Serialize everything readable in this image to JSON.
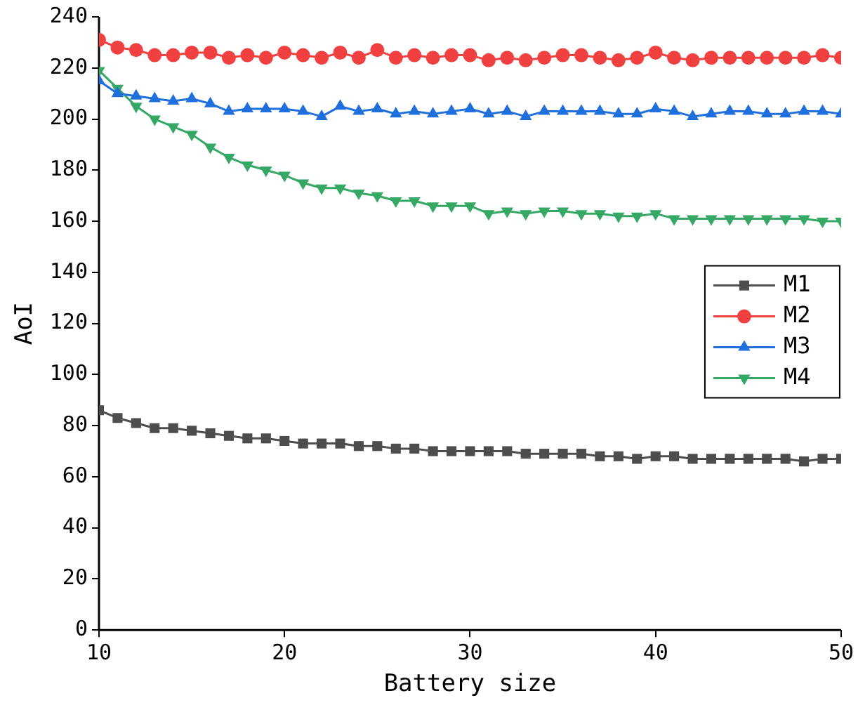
{
  "chart_data": {
    "type": "line",
    "xlabel": "Battery size",
    "ylabel": "AoI",
    "x": [
      10,
      11,
      12,
      13,
      14,
      15,
      16,
      17,
      18,
      19,
      20,
      21,
      22,
      23,
      24,
      25,
      26,
      27,
      28,
      29,
      30,
      31,
      32,
      33,
      34,
      35,
      36,
      37,
      38,
      39,
      40,
      41,
      42,
      43,
      44,
      45,
      46,
      47,
      48,
      49,
      50
    ],
    "series": [
      {
        "name": "M1",
        "color": "#4d4d4d",
        "marker": "square",
        "values": [
          86,
          83,
          81,
          79,
          79,
          78,
          77,
          76,
          75,
          75,
          74,
          73,
          73,
          73,
          72,
          72,
          71,
          71,
          70,
          70,
          70,
          70,
          70,
          69,
          69,
          69,
          69,
          68,
          68,
          67,
          68,
          68,
          67,
          67,
          67,
          67,
          67,
          67,
          66,
          67,
          67
        ]
      },
      {
        "name": "M2",
        "color": "#f04040",
        "marker": "circle",
        "values": [
          231,
          228,
          227,
          225,
          225,
          226,
          226,
          224,
          225,
          224,
          226,
          225,
          224,
          226,
          224,
          227,
          224,
          225,
          224,
          225,
          225,
          223,
          224,
          223,
          224,
          225,
          225,
          224,
          223,
          224,
          226,
          224,
          223,
          224,
          224,
          224,
          224,
          224,
          224,
          225,
          224
        ]
      },
      {
        "name": "M3",
        "color": "#1f6fdc",
        "marker": "triangle",
        "values": [
          215,
          210,
          209,
          208,
          207,
          208,
          206,
          203,
          204,
          204,
          204,
          203,
          201,
          205,
          203,
          204,
          202,
          203,
          202,
          203,
          204,
          202,
          203,
          201,
          203,
          203,
          203,
          203,
          202,
          202,
          204,
          203,
          201,
          202,
          203,
          203,
          202,
          202,
          203,
          203,
          202
        ]
      },
      {
        "name": "M4",
        "color": "#35a865",
        "marker": "triangle-down",
        "values": [
          219,
          212,
          205,
          200,
          197,
          194,
          189,
          185,
          182,
          180,
          178,
          175,
          173,
          173,
          171,
          170,
          168,
          168,
          166,
          166,
          166,
          163,
          164,
          163,
          164,
          164,
          163,
          163,
          162,
          162,
          163,
          161,
          161,
          161,
          161,
          161,
          161,
          161,
          161,
          160,
          160
        ]
      }
    ],
    "xlim": [
      10,
      50
    ],
    "xticks": [
      10,
      20,
      30,
      40,
      50
    ],
    "ylim": [
      0,
      240
    ],
    "yticks": [
      0,
      20,
      40,
      60,
      80,
      100,
      120,
      140,
      160,
      180,
      200,
      220,
      240
    ],
    "grid": false,
    "legend": "right",
    "line_style": "solid"
  }
}
